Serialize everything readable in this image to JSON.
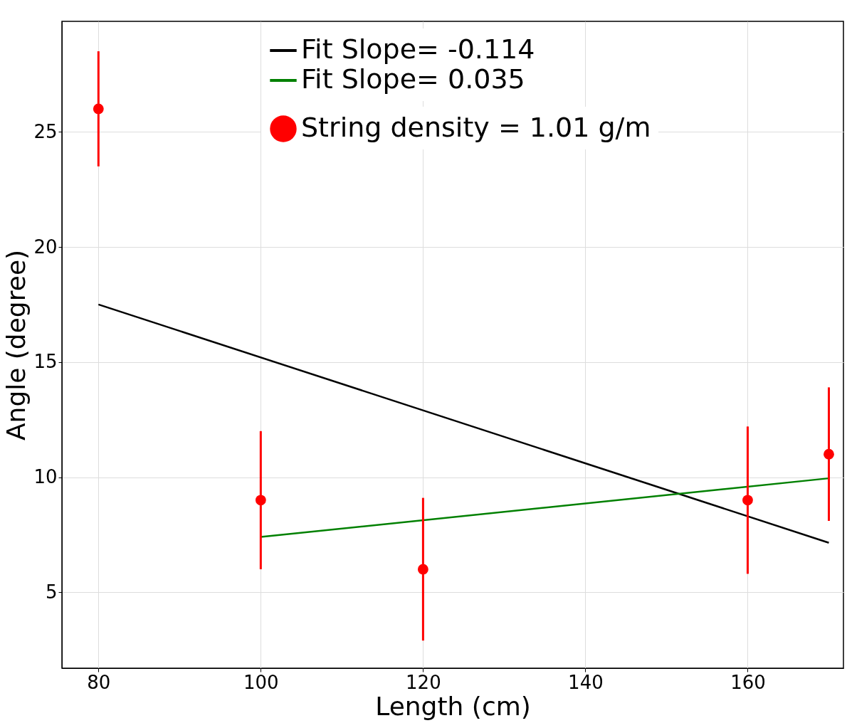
{
  "chart_data": {
    "type": "scatter",
    "xlabel": "Length (cm)",
    "ylabel": "Angle (degree)",
    "x": [
      80,
      100,
      120,
      160,
      170
    ],
    "xlim": [
      75.5,
      171.8
    ],
    "xticks": [
      80,
      100,
      120,
      140,
      160
    ],
    "ylim": [
      1.7,
      29.8
    ],
    "yticks": [
      5,
      10,
      15,
      20,
      25
    ],
    "grid": true,
    "legend": "top right",
    "series": [
      {
        "type": "line",
        "name": "Fit Slope= -0.114",
        "color": "#000000",
        "marker": "none",
        "line_style": "solid",
        "x": [
          80,
          170
        ],
        "values": [
          17.5,
          7.15
        ]
      },
      {
        "type": "line",
        "name": "Fit Slope= 0.035",
        "color": "#008000",
        "marker": "none",
        "line_style": "solid",
        "x": [
          100,
          170
        ],
        "values": [
          7.4,
          9.95
        ]
      },
      {
        "type": "scatter",
        "name": "String density = 1.01 g/m",
        "color": "#ff0000",
        "marker": "circle",
        "values": [
          26,
          9,
          6,
          9,
          11
        ],
        "errors": [
          2.5,
          3,
          3.1,
          3.2,
          2.9
        ]
      }
    ]
  }
}
